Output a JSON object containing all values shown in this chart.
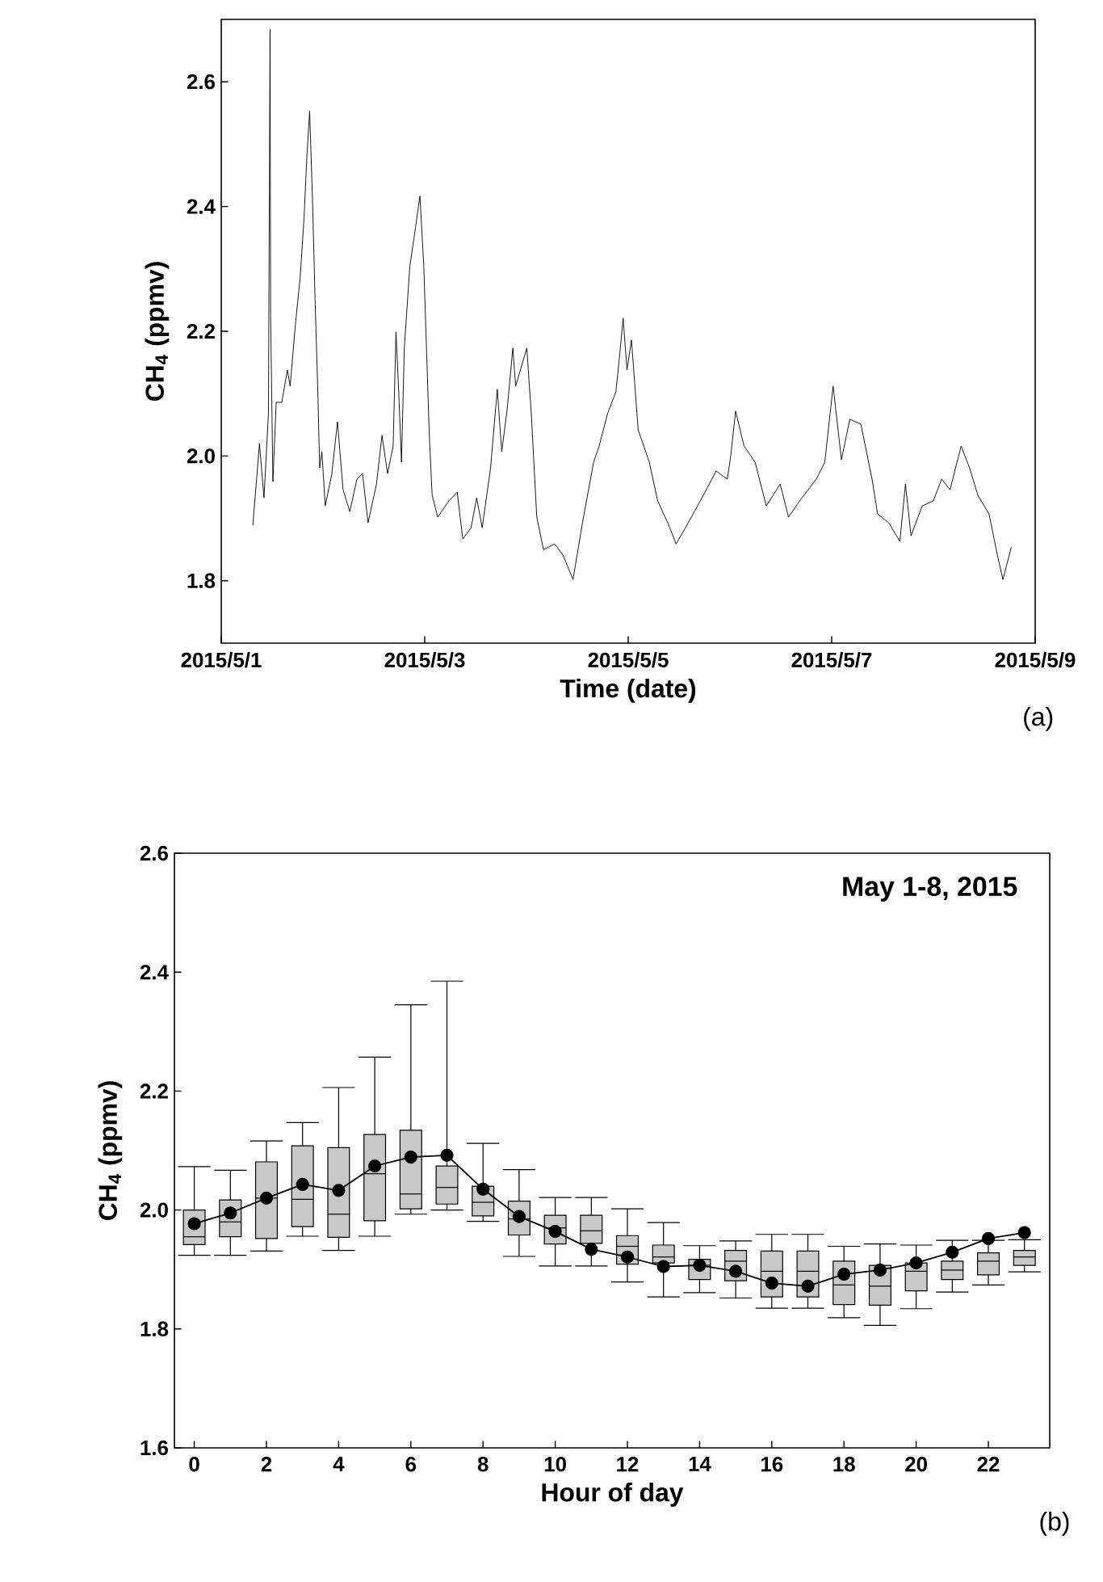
{
  "chart_data": [
    {
      "type": "line",
      "xlabel": "Time (date)",
      "ylabel": "CH$_{4}$ (ppmv)",
      "annotations": [
        "(a)"
      ],
      "color": "#000000",
      "marker": "none",
      "line_style": "solid",
      "xlim": [
        "2015-05-01",
        "2015-05-09"
      ],
      "ylim": [
        1.7,
        2.7
      ],
      "xticks": [
        {
          "value": "2015-05-01",
          "label": "2015/5/1"
        },
        {
          "value": "2015-05-03",
          "label": "2015/5/3"
        },
        {
          "value": "2015-05-05",
          "label": "2015/5/5"
        },
        {
          "value": "2015-05-07",
          "label": "2015/5/7"
        },
        {
          "value": "2015-05-09",
          "label": "2015/5/9"
        }
      ],
      "yticks": [
        {
          "value": 1.8,
          "label": "1.8"
        },
        {
          "value": 2.0,
          "label": "2.0"
        },
        {
          "value": 2.2,
          "label": "2.2"
        },
        {
          "value": 2.4,
          "label": "2.4"
        },
        {
          "value": 2.6,
          "label": "2.6"
        }
      ],
      "x": [
        "2015-05-01T07:27",
        "2015-05-01T09:01",
        "2015-05-01T10:05",
        "2015-05-01T11:08",
        "2015-05-01T11:31",
        "2015-05-01T11:39",
        "2015-05-01T12:11",
        "2015-05-01T12:58",
        "2015-05-01T14:17",
        "2015-05-01T15:36",
        "2015-05-01T16:15",
        "2015-05-01T17:34",
        "2015-05-01T18:37",
        "2015-05-01T19:32",
        "2015-05-01T20:11",
        "2015-05-01T20:51",
        "2015-05-01T21:30",
        "2015-05-01T22:10",
        "2015-05-01T22:49",
        "2015-05-01T23:13",
        "2015-05-01T23:44",
        "2015-05-02T00:32",
        "2015-05-02T02:06",
        "2015-05-02T03:25",
        "2015-05-02T04:44",
        "2015-05-02T06:19",
        "2015-05-02T08:01",
        "2015-05-02T09:20",
        "2015-05-02T10:38",
        "2015-05-02T12:37",
        "2015-05-02T13:55",
        "2015-05-02T15:14",
        "2015-05-02T16:33",
        "2015-05-02T17:13",
        "2015-05-02T17:52",
        "2015-05-02T18:31",
        "2015-05-02T19:11",
        "2015-05-02T20:29",
        "2015-05-02T21:48",
        "2015-05-02T22:52",
        "2015-05-02T23:47",
        "2015-05-03T01:05",
        "2015-05-03T01:45",
        "2015-05-03T03:04",
        "2015-05-03T05:41",
        "2015-05-03T07:40",
        "2015-05-03T08:58",
        "2015-05-03T10:56",
        "2015-05-03T12:15",
        "2015-05-03T13:34",
        "2015-05-03T15:32",
        "2015-05-03T17:07",
        "2015-05-03T18:10",
        "2015-05-03T19:29",
        "2015-05-03T20:47",
        "2015-05-03T21:27",
        "2015-05-04T00:05",
        "2015-05-04T01:08",
        "2015-05-04T02:26",
        "2015-05-04T04:01",
        "2015-05-04T06:39",
        "2015-05-04T08:37",
        "2015-05-04T10:59",
        "2015-05-04T13:13",
        "2015-05-04T15:50",
        "2015-05-04T17:09",
        "2015-05-04T19:08",
        "2015-05-04T21:06",
        "2015-05-04T22:01",
        "2015-05-04T22:48",
        "2015-05-04T23:43",
        "2015-05-05T00:46",
        "2015-05-05T02:21",
        "2015-05-05T04:59",
        "2015-05-05T06:57",
        "2015-05-05T09:35",
        "2015-05-05T11:17",
        "2015-05-05T13:31",
        "2015-05-05T18:07",
        "2015-05-05T20:44",
        "2015-05-05T23:22",
        "2015-05-06T00:09",
        "2015-05-06T01:20",
        "2015-05-06T03:19",
        "2015-05-06T05:56",
        "2015-05-06T08:34",
        "2015-05-06T11:51",
        "2015-05-06T13:49",
        "2015-05-06T16:26",
        "2015-05-06T20:23",
        "2015-05-06T22:22",
        "2015-05-07T00:20",
        "2015-05-07T02:18",
        "2015-05-07T04:16",
        "2015-05-07T06:53",
        "2015-05-07T09:31",
        "2015-05-07T10:50",
        "2015-05-07T13:28",
        "2015-05-07T16:05",
        "2015-05-07T17:24",
        "2015-05-07T18:43",
        "2015-05-07T21:21",
        "2015-05-07T23:58",
        "2015-05-08T01:56",
        "2015-05-08T03:55",
        "2015-05-08T06:32",
        "2015-05-08T08:31",
        "2015-05-08T10:29",
        "2015-05-08T13:07",
        "2015-05-08T15:05",
        "2015-05-08T16:23",
        "2015-05-08T18:22"
      ],
      "values": [
        1.889,
        2.02,
        1.933,
        2.068,
        2.684,
        2.225,
        1.959,
        2.086,
        2.086,
        2.138,
        2.112,
        2.216,
        2.286,
        2.382,
        2.478,
        2.553,
        2.417,
        2.243,
        2.094,
        1.981,
        2.007,
        1.92,
        1.972,
        2.055,
        1.946,
        1.911,
        1.963,
        1.972,
        1.893,
        1.955,
        2.033,
        1.972,
        2.016,
        2.199,
        2.103,
        1.99,
        2.173,
        2.304,
        2.365,
        2.417,
        2.304,
        2.033,
        1.937,
        1.902,
        1.928,
        1.942,
        1.867,
        1.885,
        1.933,
        1.885,
        1.981,
        2.107,
        2.007,
        2.077,
        2.173,
        2.112,
        2.173,
        2.068,
        1.902,
        1.85,
        1.859,
        1.841,
        1.802,
        1.893,
        1.99,
        2.016,
        2.068,
        2.103,
        2.164,
        2.221,
        2.138,
        2.186,
        2.042,
        1.99,
        1.928,
        1.889,
        1.859,
        1.885,
        1.942,
        1.976,
        1.963,
        1.998,
        2.072,
        2.016,
        1.99,
        1.92,
        1.955,
        1.902,
        1.928,
        1.963,
        1.99,
        2.112,
        1.994,
        2.059,
        2.051,
        1.963,
        1.907,
        1.893,
        1.863,
        1.955,
        1.872,
        1.92,
        1.928,
        1.963,
        1.946,
        2.016,
        1.981,
        1.937,
        1.907,
        1.841,
        1.802,
        1.854
      ]
    },
    {
      "type": "box",
      "xlabel": "Hour of day",
      "ylabel": "CH$_{4}$ (ppmv)",
      "annotations": [
        "May 1-8, 2015",
        "(b)"
      ],
      "categories": [
        "0",
        null,
        "2",
        null,
        "4",
        null,
        "6",
        null,
        "8",
        null,
        "10",
        null,
        "12",
        null,
        "14",
        null,
        "16",
        null,
        "18",
        null,
        "20",
        null,
        "22",
        null
      ],
      "ylim": [
        1.6,
        2.6
      ],
      "yticks": [
        {
          "value": 1.6,
          "label": "1.6"
        },
        {
          "value": 1.8,
          "label": "1.8"
        },
        {
          "value": 2.0,
          "label": "2.0"
        },
        {
          "value": 2.2,
          "label": "2.2"
        },
        {
          "value": 2.4,
          "label": "2.4"
        },
        {
          "value": 2.6,
          "label": "2.6"
        }
      ],
      "series": [
        {
          "type": "box",
          "color": "#c8c8c8",
          "boxes": [
            {
              "low": 1.924,
              "q1": 1.942,
              "median": 1.955,
              "q3": 2.0,
              "high": 2.073
            },
            {
              "low": 1.924,
              "q1": 1.955,
              "median": 1.98,
              "q3": 2.017,
              "high": 2.067
            },
            {
              "low": 1.931,
              "q1": 1.952,
              "median": 2.02,
              "q3": 2.081,
              "high": 2.116
            },
            {
              "low": 1.956,
              "q1": 1.972,
              "median": 2.018,
              "q3": 2.108,
              "high": 2.147
            },
            {
              "low": 1.932,
              "q1": 1.954,
              "median": 1.993,
              "q3": 2.105,
              "high": 2.206
            },
            {
              "low": 1.956,
              "q1": 1.982,
              "median": 2.061,
              "q3": 2.127,
              "high": 2.257
            },
            {
              "low": 1.993,
              "q1": 2.002,
              "median": 2.027,
              "q3": 2.134,
              "high": 2.345
            },
            {
              "low": 2.0,
              "q1": 2.01,
              "median": 2.038,
              "q3": 2.074,
              "high": 2.385
            },
            {
              "low": 1.981,
              "q1": 1.99,
              "median": 2.013,
              "q3": 2.04,
              "high": 2.112
            },
            {
              "low": 1.922,
              "q1": 1.958,
              "median": 1.985,
              "q3": 2.015,
              "high": 2.068
            },
            {
              "low": 1.906,
              "q1": 1.943,
              "median": 1.97,
              "q3": 1.991,
              "high": 2.021
            },
            {
              "low": 1.906,
              "q1": 1.944,
              "median": 1.965,
              "q3": 1.991,
              "high": 2.021
            },
            {
              "low": 1.879,
              "q1": 1.909,
              "median": 1.939,
              "q3": 1.957,
              "high": 2.002
            },
            {
              "low": 1.854,
              "q1": 1.911,
              "median": 1.921,
              "q3": 1.941,
              "high": 1.979
            },
            {
              "low": 1.861,
              "q1": 1.883,
              "median": 1.907,
              "q3": 1.917,
              "high": 1.94
            },
            {
              "low": 1.852,
              "q1": 1.881,
              "median": 1.914,
              "q3": 1.932,
              "high": 1.948
            },
            {
              "low": 1.835,
              "q1": 1.854,
              "median": 1.897,
              "q3": 1.931,
              "high": 1.959
            },
            {
              "low": 1.835,
              "q1": 1.854,
              "median": 1.897,
              "q3": 1.931,
              "high": 1.959
            },
            {
              "low": 1.819,
              "q1": 1.841,
              "median": 1.874,
              "q3": 1.914,
              "high": 1.939
            },
            {
              "low": 1.806,
              "q1": 1.84,
              "median": 1.872,
              "q3": 1.907,
              "high": 1.943
            },
            {
              "low": 1.834,
              "q1": 1.864,
              "median": 1.897,
              "q3": 1.911,
              "high": 1.941
            },
            {
              "low": 1.862,
              "q1": 1.883,
              "median": 1.899,
              "q3": 1.914,
              "high": 1.949
            },
            {
              "low": 1.874,
              "q1": 1.891,
              "median": 1.914,
              "q3": 1.928,
              "high": 1.949
            },
            {
              "low": 1.896,
              "q1": 1.907,
              "median": 1.921,
              "q3": 1.932,
              "high": 1.95
            }
          ]
        },
        {
          "type": "line",
          "color": "#000000",
          "marker": "circle",
          "line_style": "solid",
          "values": [
            1.977,
            1.995,
            2.02,
            2.043,
            2.033,
            2.074,
            2.089,
            2.092,
            2.035,
            1.989,
            1.964,
            1.934,
            1.921,
            1.905,
            1.907,
            1.897,
            1.877,
            1.872,
            1.892,
            1.899,
            1.911,
            1.929,
            1.952,
            1.962
          ]
        }
      ]
    }
  ]
}
